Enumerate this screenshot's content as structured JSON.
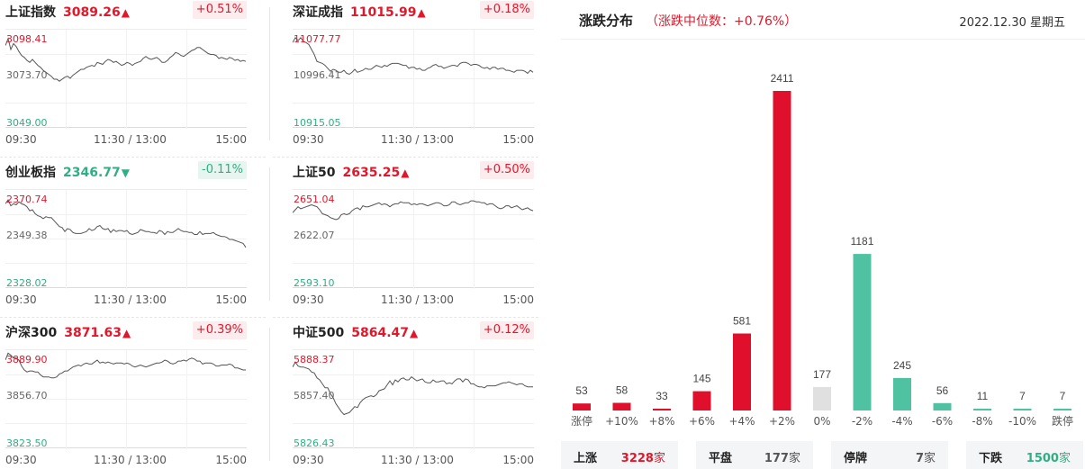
{
  "indices": [
    {
      "name": "上证指数",
      "price": "3089.26",
      "arrow": "▲",
      "change": "+0.51%",
      "dir": "up",
      "top_label": "3098.41",
      "mid_label": "3073.70",
      "bot_label": "3049.00",
      "series": [
        0.84,
        0.91,
        0.8,
        0.86,
        0.83,
        0.78,
        0.74,
        0.72,
        0.69,
        0.67,
        0.7,
        0.67,
        0.64,
        0.62,
        0.59,
        0.57,
        0.55,
        0.53,
        0.5,
        0.5,
        0.48,
        0.5,
        0.52,
        0.53,
        0.51,
        0.54,
        0.56,
        0.58,
        0.6,
        0.6,
        0.62,
        0.63,
        0.64,
        0.63,
        0.67,
        0.66,
        0.65,
        0.68,
        0.7,
        0.69,
        0.67,
        0.68,
        0.66,
        0.64,
        0.65,
        0.67,
        0.66,
        0.64,
        0.66,
        0.67,
        0.68,
        0.71,
        0.73,
        0.71,
        0.7,
        0.71,
        0.72,
        0.7,
        0.67,
        0.67,
        0.69,
        0.72,
        0.74,
        0.77,
        0.76,
        0.74,
        0.73,
        0.75,
        0.77,
        0.79,
        0.8,
        0.82,
        0.82,
        0.8,
        0.78,
        0.76,
        0.75,
        0.75,
        0.74,
        0.71,
        0.72,
        0.71,
        0.7,
        0.72,
        0.71,
        0.69,
        0.7,
        0.68,
        0.69,
        0.68
      ]
    },
    {
      "name": "深证成指",
      "price": "11015.99",
      "arrow": "▲",
      "change": "+0.18%",
      "dir": "up",
      "top_label": "11077.77",
      "mid_label": "10996.41",
      "bot_label": "10915.05",
      "series": [
        0.87,
        0.92,
        0.89,
        0.92,
        0.88,
        0.87,
        0.85,
        0.8,
        0.75,
        0.68,
        0.67,
        0.66,
        0.64,
        0.61,
        0.58,
        0.6,
        0.59,
        0.57,
        0.57,
        0.59,
        0.56,
        0.55,
        0.57,
        0.6,
        0.57,
        0.58,
        0.59,
        0.61,
        0.6,
        0.6,
        0.62,
        0.64,
        0.63,
        0.62,
        0.64,
        0.63,
        0.65,
        0.66,
        0.66,
        0.66,
        0.65,
        0.64,
        0.64,
        0.61,
        0.62,
        0.62,
        0.6,
        0.61,
        0.59,
        0.59,
        0.61,
        0.62,
        0.64,
        0.65,
        0.63,
        0.63,
        0.61,
        0.62,
        0.63,
        0.64,
        0.64,
        0.63,
        0.66,
        0.67,
        0.67,
        0.66,
        0.64,
        0.65,
        0.65,
        0.64,
        0.62,
        0.61,
        0.62,
        0.6,
        0.62,
        0.62,
        0.6,
        0.61,
        0.61,
        0.59,
        0.59,
        0.58,
        0.57,
        0.59,
        0.59,
        0.59,
        0.58,
        0.56,
        0.59,
        0.57
      ]
    },
    {
      "name": "创业板指",
      "price": "2346.77",
      "arrow": "▼",
      "change": "-0.11%",
      "dir": "down",
      "top_label": "2370.74",
      "mid_label": "2349.38",
      "bot_label": "2328.02",
      "series": [
        0.86,
        0.9,
        0.84,
        0.86,
        0.85,
        0.88,
        0.86,
        0.85,
        0.83,
        0.79,
        0.8,
        0.76,
        0.74,
        0.73,
        0.71,
        0.73,
        0.72,
        0.72,
        0.69,
        0.66,
        0.63,
        0.62,
        0.58,
        0.61,
        0.6,
        0.57,
        0.56,
        0.56,
        0.56,
        0.57,
        0.58,
        0.61,
        0.59,
        0.6,
        0.63,
        0.64,
        0.61,
        0.6,
        0.61,
        0.57,
        0.6,
        0.58,
        0.59,
        0.59,
        0.58,
        0.59,
        0.56,
        0.55,
        0.56,
        0.57,
        0.6,
        0.59,
        0.58,
        0.58,
        0.57,
        0.57,
        0.56,
        0.59,
        0.58,
        0.55,
        0.58,
        0.57,
        0.57,
        0.59,
        0.61,
        0.59,
        0.58,
        0.58,
        0.57,
        0.57,
        0.55,
        0.55,
        0.58,
        0.55,
        0.56,
        0.56,
        0.56,
        0.57,
        0.55,
        0.54,
        0.53,
        0.53,
        0.52,
        0.5,
        0.5,
        0.49,
        0.48,
        0.47,
        0.46,
        0.42
      ]
    },
    {
      "name": "上证50",
      "price": "2635.25",
      "arrow": "▲",
      "change": "+0.50%",
      "dir": "up",
      "top_label": "2651.04",
      "mid_label": "2622.07",
      "bot_label": "2593.10",
      "series": [
        0.77,
        0.8,
        0.83,
        0.81,
        0.82,
        0.83,
        0.84,
        0.85,
        0.84,
        0.83,
        0.8,
        0.76,
        0.75,
        0.74,
        0.72,
        0.71,
        0.7,
        0.71,
        0.75,
        0.76,
        0.75,
        0.76,
        0.79,
        0.81,
        0.82,
        0.8,
        0.84,
        0.83,
        0.83,
        0.84,
        0.85,
        0.86,
        0.87,
        0.85,
        0.86,
        0.85,
        0.83,
        0.85,
        0.86,
        0.86,
        0.88,
        0.87,
        0.87,
        0.87,
        0.85,
        0.86,
        0.85,
        0.86,
        0.86,
        0.85,
        0.84,
        0.85,
        0.86,
        0.87,
        0.87,
        0.86,
        0.84,
        0.84,
        0.85,
        0.88,
        0.88,
        0.86,
        0.85,
        0.86,
        0.87,
        0.87,
        0.89,
        0.89,
        0.88,
        0.88,
        0.87,
        0.87,
        0.85,
        0.86,
        0.86,
        0.84,
        0.82,
        0.81,
        0.82,
        0.84,
        0.84,
        0.82,
        0.83,
        0.84,
        0.82,
        0.8,
        0.81,
        0.82,
        0.8,
        0.79
      ]
    },
    {
      "name": "沪深300",
      "price": "3871.63",
      "arrow": "▲",
      "change": "+0.39%",
      "dir": "up",
      "top_label": "3889.90",
      "mid_label": "3856.70",
      "bot_label": "3823.50",
      "series": [
        0.9,
        0.97,
        0.95,
        0.92,
        0.92,
        0.9,
        0.84,
        0.8,
        0.78,
        0.79,
        0.79,
        0.78,
        0.78,
        0.75,
        0.73,
        0.73,
        0.73,
        0.72,
        0.72,
        0.73,
        0.76,
        0.77,
        0.79,
        0.79,
        0.81,
        0.83,
        0.84,
        0.85,
        0.84,
        0.86,
        0.87,
        0.86,
        0.86,
        0.88,
        0.9,
        0.87,
        0.88,
        0.87,
        0.88,
        0.87,
        0.86,
        0.87,
        0.87,
        0.87,
        0.86,
        0.87,
        0.86,
        0.84,
        0.83,
        0.84,
        0.85,
        0.84,
        0.83,
        0.84,
        0.85,
        0.86,
        0.87,
        0.87,
        0.88,
        0.9,
        0.89,
        0.87,
        0.86,
        0.87,
        0.89,
        0.89,
        0.9,
        0.89,
        0.91,
        0.92,
        0.91,
        0.89,
        0.89,
        0.86,
        0.87,
        0.87,
        0.87,
        0.86,
        0.84,
        0.84,
        0.85,
        0.85,
        0.85,
        0.86,
        0.85,
        0.82,
        0.82,
        0.81,
        0.8,
        0.8
      ]
    },
    {
      "name": "中证500",
      "price": "5864.47",
      "arrow": "▲",
      "change": "+0.12%",
      "dir": "up",
      "top_label": "5888.37",
      "mid_label": "5857.40",
      "bot_label": "5826.43",
      "series": [
        0.83,
        0.88,
        0.84,
        0.83,
        0.83,
        0.82,
        0.81,
        0.78,
        0.77,
        0.72,
        0.7,
        0.66,
        0.62,
        0.62,
        0.56,
        0.52,
        0.46,
        0.42,
        0.38,
        0.35,
        0.36,
        0.37,
        0.4,
        0.43,
        0.42,
        0.47,
        0.5,
        0.52,
        0.53,
        0.54,
        0.53,
        0.55,
        0.59,
        0.6,
        0.61,
        0.65,
        0.69,
        0.65,
        0.7,
        0.68,
        0.71,
        0.72,
        0.7,
        0.7,
        0.73,
        0.71,
        0.69,
        0.7,
        0.71,
        0.68,
        0.67,
        0.67,
        0.7,
        0.68,
        0.68,
        0.69,
        0.69,
        0.66,
        0.67,
        0.66,
        0.69,
        0.71,
        0.71,
        0.68,
        0.71,
        0.7,
        0.66,
        0.66,
        0.64,
        0.63,
        0.63,
        0.62,
        0.64,
        0.64,
        0.64,
        0.64,
        0.65,
        0.66,
        0.67,
        0.67,
        0.68,
        0.67,
        0.66,
        0.65,
        0.66,
        0.66,
        0.64,
        0.63,
        0.63,
        0.63
      ]
    }
  ],
  "time_axis": {
    "start": "09:30",
    "mid": "11:30 / 13:00",
    "end": "15:00"
  },
  "distribution": {
    "title": "涨跌分布",
    "subtitle": "（涨跌中位数：+0.76%）",
    "date": "2022.12.30 星期五"
  },
  "chart_data": {
    "type": "bar",
    "categories": [
      "涨停",
      "+10%",
      "+8%",
      "+6%",
      "+4%",
      "+2%",
      "0%",
      "-2%",
      "-4%",
      "-6%",
      "-8%",
      "-10%",
      "跌停"
    ],
    "values": [
      53,
      58,
      33,
      145,
      581,
      2411,
      177,
      1181,
      245,
      56,
      11,
      7,
      7
    ],
    "colors": [
      "#e0102d",
      "#e0102d",
      "#e0102d",
      "#e0102d",
      "#e0102d",
      "#e0102d",
      "#e0e0e0",
      "#4fc3a1",
      "#4fc3a1",
      "#4fc3a1",
      "#4fc3a1",
      "#4fc3a1",
      "#4fc3a1"
    ],
    "title": "",
    "xlabel": "",
    "ylabel": "",
    "ylim": [
      0,
      2411
    ]
  },
  "summary": [
    {
      "label": "上涨",
      "value": "3228",
      "unit": "家",
      "color": "#e0182b"
    },
    {
      "label": "平盘",
      "value": "177",
      "unit": "家",
      "color": "#555555"
    },
    {
      "label": "停牌",
      "value": "7",
      "unit": "家",
      "color": "#555555"
    },
    {
      "label": "下跌",
      "value": "1500",
      "unit": "家",
      "color": "#2faf83"
    }
  ]
}
